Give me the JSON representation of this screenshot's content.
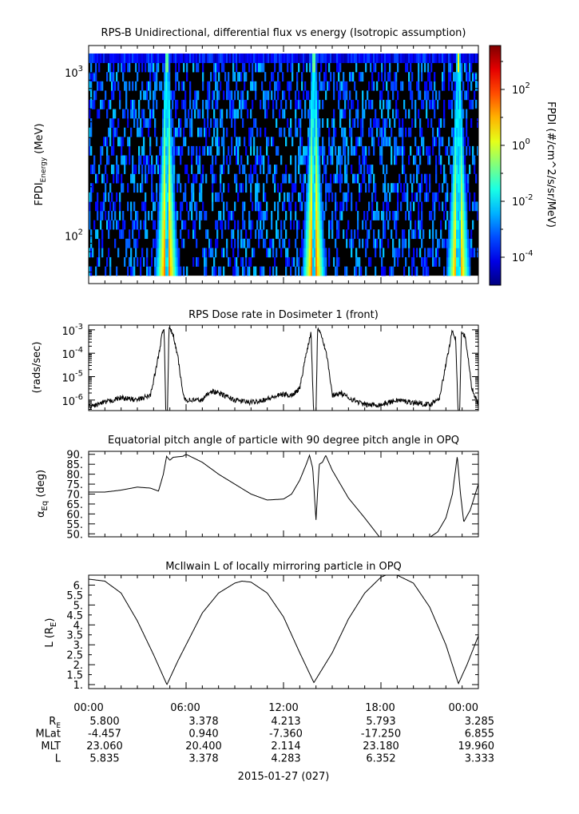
{
  "chart_data": [
    {
      "type": "heatmap",
      "title": "RPS-B  Unidirectional, differential flux vs energy (Isotropic assumption)",
      "ylabel": "FPDI",
      "ylabel_sub": "Energy",
      "ylabel_unit": " (MeV)",
      "yscale": "log",
      "ylim": [
        51,
        1466
      ],
      "data_energy_range_mev": [
        57,
        1310
      ],
      "yticks": [
        {
          "value": 100,
          "base": "10",
          "exp": "2"
        },
        {
          "value": 1000,
          "base": "10",
          "exp": "3"
        }
      ],
      "x_hours_range": [
        0,
        24
      ],
      "flux_peak_hours": [
        4.82,
        13.87,
        22.77
      ],
      "colorbar": {
        "label": "FPDI (#/cm^2/s/sr/MeV)",
        "log_range": [
          -5,
          3.57
        ],
        "ticks": [
          {
            "value": 2,
            "base": "10",
            "exp": "2"
          },
          {
            "value": 0,
            "base": "10",
            "exp": "0"
          },
          {
            "value": -2,
            "base": "10",
            "exp": "-2"
          },
          {
            "value": -4,
            "base": "10",
            "exp": "-4"
          }
        ],
        "colormap": "jet"
      }
    },
    {
      "type": "line",
      "title": "RPS  Dose rate in Dosimeter 1 (front)",
      "ylabel": "(rads/sec)",
      "yscale": "log",
      "ylim_log10": [
        -6.45,
        -2.8
      ],
      "yticks": [
        {
          "value": -3,
          "base": "10",
          "exp": "-3"
        },
        {
          "value": -4,
          "base": "10",
          "exp": "-4"
        },
        {
          "value": -5,
          "base": "10",
          "exp": "-5"
        },
        {
          "value": -6,
          "base": "10",
          "exp": "-6"
        }
      ],
      "x_hours": [
        0,
        1,
        2,
        3,
        3.8,
        4.2,
        4.5,
        4.65,
        4.75,
        4.85,
        4.95,
        5.2,
        5.5,
        5.8,
        6,
        7,
        7.5,
        8,
        9,
        10,
        11,
        12,
        12.5,
        13,
        13.4,
        13.7,
        13.85,
        14.0,
        14.1,
        14.3,
        14.7,
        15,
        15.5,
        16,
        17,
        18,
        19,
        20,
        21,
        21.6,
        22,
        22.4,
        22.6,
        22.75,
        22.85,
        22.95,
        23.2,
        23.6,
        24
      ],
      "log10_values": [
        -6.3,
        -6.1,
        -5.9,
        -6.0,
        -5.8,
        -4.5,
        -3.3,
        -2.9,
        -6.5,
        -6.5,
        -2.9,
        -3.2,
        -4.2,
        -5.7,
        -6.0,
        -6.0,
        -5.6,
        -5.7,
        -6.0,
        -6.1,
        -5.95,
        -5.75,
        -5.8,
        -5.5,
        -4.0,
        -3.1,
        -6.5,
        -6.5,
        -2.9,
        -3.1,
        -4.2,
        -5.8,
        -5.7,
        -5.9,
        -6.2,
        -6.2,
        -6.0,
        -6.1,
        -6.2,
        -5.9,
        -4.5,
        -3.0,
        -3.4,
        -6.5,
        -6.5,
        -3.1,
        -3.3,
        -5.5,
        -6.2
      ]
    },
    {
      "type": "line",
      "title": "Equatorial pitch angle of particle with 90 degree pitch angle in OPQ",
      "ylabel": "α",
      "ylabel_sub": "Eq",
      "ylabel_unit": " (deg)",
      "ylim": [
        48.5,
        91.5
      ],
      "yticks": [
        "50.",
        "55.",
        "60.",
        "65.",
        "70.",
        "75.",
        "80.",
        "85.",
        "90."
      ],
      "x_hours": [
        0,
        1,
        2,
        3,
        3.8,
        4.3,
        4.6,
        4.8,
        5.0,
        5.2,
        5.8,
        6.0,
        7,
        8,
        9,
        10,
        11,
        12,
        12.5,
        13,
        13.4,
        13.6,
        13.8,
        14.0,
        14.2,
        14.4,
        14.6,
        15,
        16,
        17,
        17.9,
        21.05,
        21.5,
        22,
        22.4,
        22.7,
        22.9,
        23.1,
        23.5,
        24
      ],
      "values": [
        71,
        71,
        72,
        73.5,
        73,
        71.5,
        80,
        89,
        87,
        88.5,
        89,
        90,
        86,
        80,
        75,
        70,
        67,
        67.5,
        70,
        77,
        85,
        89.5,
        83,
        57,
        85,
        86,
        89.5,
        82,
        68,
        58,
        48.5,
        48.5,
        51,
        58,
        70,
        89,
        70,
        56,
        62,
        75
      ]
    },
    {
      "type": "line",
      "title": "McIlwain L of locally mirroring particle in OPQ",
      "ylabel": "L (R",
      "ylabel_sub": "E",
      "ylabel_unit": ")",
      "ylim": [
        0.8,
        6.5
      ],
      "yticks": [
        "1.",
        "1.5",
        "2.",
        "2.5",
        "3.",
        "3.5",
        "4.",
        "4.5",
        "5.",
        "5.5",
        "6."
      ],
      "x_hours": [
        0,
        1,
        2,
        3,
        4,
        4.82,
        5.5,
        6,
        7,
        8,
        9,
        9.44,
        10,
        11,
        12,
        13,
        13.87,
        15,
        16,
        17,
        18,
        18.6,
        19,
        20,
        21,
        22,
        22.77,
        23.3,
        24
      ],
      "values": [
        6.3,
        6.2,
        5.6,
        4.2,
        2.5,
        1.0,
        2.2,
        3.0,
        4.6,
        5.6,
        6.1,
        6.2,
        6.15,
        5.6,
        4.4,
        2.6,
        1.1,
        2.6,
        4.3,
        5.6,
        6.4,
        6.6,
        6.5,
        6.1,
        4.9,
        3.0,
        1.05,
        2.0,
        3.45
      ]
    }
  ],
  "x_axis": {
    "tick_labels": [
      "00:00",
      "06:00",
      "12:00",
      "18:00",
      "00:00"
    ],
    "rows": [
      {
        "label": "R",
        "label_sub": "E",
        "values": [
          "5.800",
          "3.378",
          "4.213",
          "5.793",
          "3.285"
        ]
      },
      {
        "label": "MLat",
        "values": [
          "-4.457",
          "0.940",
          "-7.360",
          "-17.250",
          "6.855"
        ]
      },
      {
        "label": "MLT",
        "values": [
          "23.060",
          "20.400",
          "2.114",
          "23.180",
          "19.960"
        ]
      },
      {
        "label": "L",
        "values": [
          "5.835",
          "3.378",
          "4.283",
          "6.352",
          "3.333"
        ]
      }
    ],
    "date_label": "2015-01-27 (027)"
  }
}
